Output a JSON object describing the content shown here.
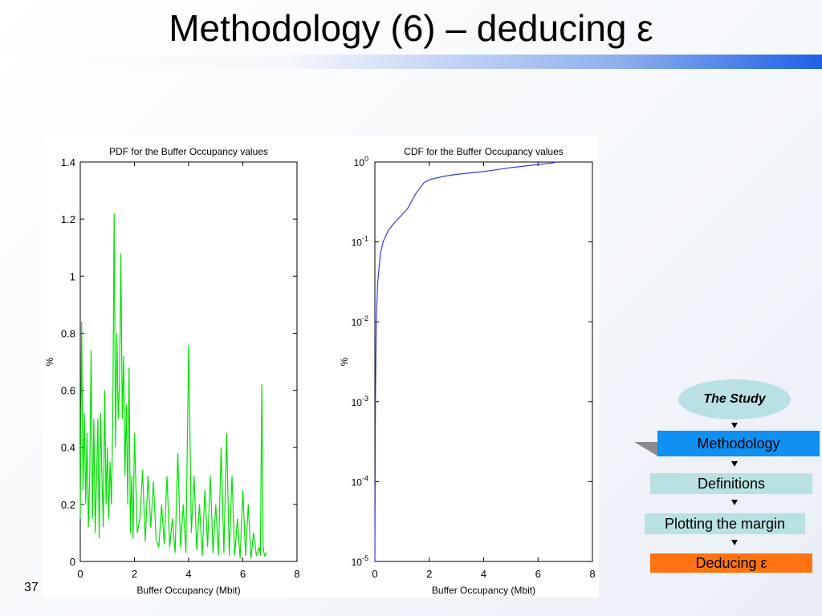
{
  "title": "Methodology (6) – deducing ε",
  "page_number": "37",
  "flow": {
    "study": "The Study",
    "methodology": "Methodology",
    "definitions": "Definitions",
    "plotting": "Plotting the margin",
    "deducing": "Deducing ε"
  },
  "colors": {
    "pdf_line": "#00e000",
    "cdf_line": "#3a3adf",
    "node_light": "#b9e0e2",
    "node_active": "#0f90f2",
    "node_current": "#ff7410"
  },
  "chart_data": [
    {
      "type": "line",
      "title": "PDF for the Buffer Occupancy values",
      "xlabel": "Buffer Occupancy (Mbit)",
      "ylabel": "%",
      "xlim": [
        0,
        8
      ],
      "ylim": [
        0,
        1.4
      ],
      "xticks": [
        "0",
        "2",
        "4",
        "6",
        "8"
      ],
      "yticks": [
        "0",
        "0.2",
        "0.4",
        "0.6",
        "0.8",
        "1",
        "1.2",
        "1.4"
      ],
      "grid": false,
      "series": [
        {
          "x": [
            0,
            0.05,
            0.1,
            0.15,
            0.2,
            0.25,
            0.3,
            0.35,
            0.4,
            0.45,
            0.5,
            0.55,
            0.6,
            0.65,
            0.7,
            0.75,
            0.8,
            0.85,
            0.9,
            0.95,
            1.0,
            1.05,
            1.1,
            1.15,
            1.2,
            1.25,
            1.3,
            1.35,
            1.4,
            1.45,
            1.5,
            1.55,
            1.6,
            1.65,
            1.7,
            1.75,
            1.8,
            1.85,
            1.9,
            1.95,
            2.0,
            2.1,
            2.2,
            2.3,
            2.4,
            2.5,
            2.6,
            2.7,
            2.8,
            2.9,
            3.0,
            3.1,
            3.2,
            3.3,
            3.4,
            3.5,
            3.6,
            3.7,
            3.8,
            3.9,
            4.0,
            4.1,
            4.2,
            4.3,
            4.4,
            4.5,
            4.6,
            4.7,
            4.8,
            4.9,
            5.0,
            5.1,
            5.2,
            5.3,
            5.4,
            5.5,
            5.6,
            5.7,
            5.8,
            5.9,
            6.0,
            6.1,
            6.2,
            6.3,
            6.4,
            6.5,
            6.6,
            6.65,
            6.7,
            6.75,
            6.8,
            6.9
          ],
          "y": [
            0.15,
            0.84,
            0.25,
            0.52,
            0.2,
            0.45,
            0.12,
            0.3,
            0.74,
            0.15,
            0.5,
            0.1,
            0.3,
            0.5,
            0.08,
            0.52,
            0.3,
            0.12,
            0.6,
            0.2,
            0.4,
            0.15,
            0.35,
            0.2,
            0.5,
            1.22,
            0.4,
            0.8,
            0.5,
            0.62,
            1.08,
            0.5,
            0.72,
            0.3,
            0.55,
            0.2,
            0.68,
            0.1,
            0.3,
            0.08,
            0.45,
            0.1,
            0.15,
            0.32,
            0.07,
            0.3,
            0.12,
            0.28,
            0.08,
            0.05,
            0.2,
            0.06,
            0.3,
            0.05,
            0.15,
            0.03,
            0.38,
            0.05,
            0.2,
            0.03,
            0.76,
            0.1,
            0.3,
            0.04,
            0.2,
            0.02,
            0.25,
            0.05,
            0.3,
            0.03,
            0.2,
            0.02,
            0.4,
            0.03,
            0.45,
            0.02,
            0.3,
            0.02,
            0.15,
            0.01,
            0.25,
            0.02,
            0.2,
            0.01,
            0.1,
            0.02,
            0.05,
            0.02,
            0.62,
            0.05,
            0.02,
            0.03
          ]
        }
      ]
    },
    {
      "type": "line",
      "title": "CDF for the Buffer Occupancy values",
      "xlabel": "Buffer Occupancy (Mbit)",
      "ylabel": "%",
      "xlim": [
        0,
        8
      ],
      "ylim": [
        1e-05,
        1
      ],
      "yscale": "log",
      "xticks": [
        "0",
        "2",
        "4",
        "6",
        "8"
      ],
      "ytick_values": [
        1,
        0.1,
        0.01,
        0.001,
        0.0001,
        1e-05
      ],
      "ytick_exponents": [
        "0",
        "-1",
        "-2",
        "-3",
        "-4",
        "-5"
      ],
      "ytick_base": "10",
      "grid": false,
      "series": [
        {
          "x": [
            0,
            0.02,
            0.05,
            0.1,
            0.2,
            0.3,
            0.5,
            0.7,
            1.0,
            1.2,
            1.5,
            1.8,
            2.0,
            2.5,
            3.0,
            4.0,
            5.0,
            6.0,
            6.5,
            6.7
          ],
          "y": [
            1e-05,
            0.001,
            0.01,
            0.03,
            0.07,
            0.1,
            0.14,
            0.17,
            0.22,
            0.26,
            0.4,
            0.55,
            0.6,
            0.66,
            0.7,
            0.76,
            0.85,
            0.93,
            0.97,
            1.0
          ]
        }
      ]
    }
  ]
}
